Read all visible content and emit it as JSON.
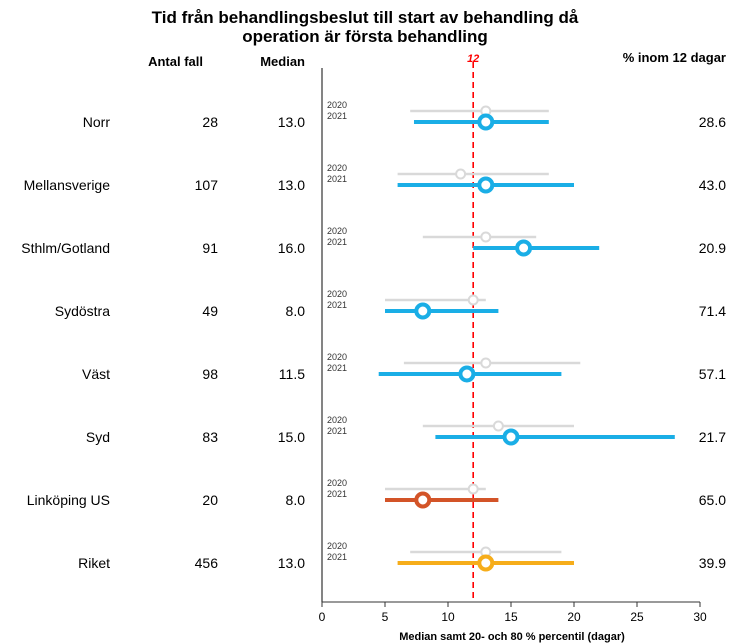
{
  "chart_data": {
    "type": "forest",
    "title_line1": "Tid från behandlingsbeslut till start av behandling då",
    "title_line2": "operation är första behandling",
    "columns": {
      "antal": "Antal fall",
      "median": "Median",
      "percent": "% inom 12 dagar"
    },
    "xlabel": "Median samt 20- och 80 % percentil (dagar)",
    "xlim": [
      0,
      30
    ],
    "xticks": [
      "0",
      "5",
      "10",
      "15",
      "20",
      "25",
      "30"
    ],
    "reference_line": {
      "value": 12,
      "label": "12",
      "color": "#ff0000"
    },
    "year_labels": [
      "2020",
      "2021"
    ],
    "rows": [
      {
        "region": "Norr",
        "antal": "28",
        "median": "13.0",
        "percent": "28.6",
        "color": "#1aaee6",
        "y2020": {
          "p20": 7,
          "median": 13,
          "p80": 18
        },
        "y2021": {
          "p20": 7.3,
          "median": 13,
          "p80": 18
        }
      },
      {
        "region": "Mellansverige",
        "antal": "107",
        "median": "13.0",
        "percent": "43.0",
        "color": "#1aaee6",
        "y2020": {
          "p20": 6,
          "median": 11,
          "p80": 18
        },
        "y2021": {
          "p20": 6,
          "median": 13,
          "p80": 20
        }
      },
      {
        "region": "Sthlm/Gotland",
        "antal": "91",
        "median": "16.0",
        "percent": "20.9",
        "color": "#1aaee6",
        "y2020": {
          "p20": 8,
          "median": 13,
          "p80": 17
        },
        "y2021": {
          "p20": 12,
          "median": 16,
          "p80": 22
        }
      },
      {
        "region": "Sydöstra",
        "antal": "49",
        "median": "8.0",
        "percent": "71.4",
        "color": "#1aaee6",
        "y2020": {
          "p20": 5,
          "median": 12,
          "p80": 13
        },
        "y2021": {
          "p20": 5,
          "median": 8,
          "p80": 14
        }
      },
      {
        "region": "Väst",
        "antal": "98",
        "median": "11.5",
        "percent": "57.1",
        "color": "#1aaee6",
        "y2020": {
          "p20": 6.5,
          "median": 13,
          "p80": 20.5
        },
        "y2021": {
          "p20": 4.5,
          "median": 11.5,
          "p80": 19
        }
      },
      {
        "region": "Syd",
        "antal": "83",
        "median": "15.0",
        "percent": "21.7",
        "color": "#1aaee6",
        "y2020": {
          "p20": 8,
          "median": 14,
          "p80": 20
        },
        "y2021": {
          "p20": 9,
          "median": 15,
          "p80": 28
        }
      },
      {
        "region": "Linköping US",
        "antal": "20",
        "median": "8.0",
        "percent": "65.0",
        "color": "#d35428",
        "y2020": {
          "p20": 5,
          "median": 12,
          "p80": 13
        },
        "y2021": {
          "p20": 5,
          "median": 8,
          "p80": 14
        }
      },
      {
        "region": "Riket",
        "antal": "456",
        "median": "13.0",
        "percent": "39.9",
        "color": "#f6ad1a",
        "y2020": {
          "p20": 7,
          "median": 13,
          "p80": 19
        },
        "y2021": {
          "p20": 6,
          "median": 13,
          "p80": 20
        }
      }
    ],
    "prior_year_color": "#d9d9d9",
    "grid": false
  }
}
